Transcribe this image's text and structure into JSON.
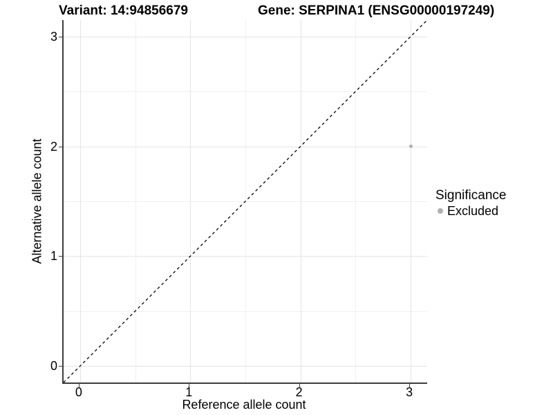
{
  "chart_data": {
    "type": "scatter",
    "titles": [
      "Variant: 14:94856679",
      "Gene: SERPINA1 (ENSG00000197249)"
    ],
    "xlabel": "Reference allele count",
    "ylabel": "Alternative allele count",
    "x_ticks": [
      0,
      1,
      2,
      3
    ],
    "y_ticks": [
      0,
      1,
      2,
      3
    ],
    "x_minor_ticks": [
      0.5,
      1.5,
      2.5
    ],
    "y_minor_ticks": [
      0.5,
      1.5,
      2.5
    ],
    "xlim": [
      -0.15,
      3.15
    ],
    "ylim": [
      -0.15,
      3.15
    ],
    "grid": "major and minor gridlines, light gray, on white panel",
    "points": [
      {
        "x": 3,
        "y": 2,
        "series": "Excluded"
      }
    ],
    "identity_line": {
      "equation": "y = x",
      "style": "dashed",
      "from": [
        -0.15,
        -0.15
      ],
      "to": [
        3.15,
        3.15
      ]
    },
    "legend": {
      "title": "Significance",
      "position": "right",
      "items": [
        {
          "label": "Excluded",
          "marker": "circle",
          "color": "#b0b0b0"
        }
      ]
    }
  },
  "colors": {
    "point": "#b0b0b0",
    "legend_marker": "#b0b0b0",
    "grid_major": "#e3e3e3",
    "grid_minor": "#f0f0f0",
    "axis_line": "#3c3c3c",
    "reference_line": "#000000",
    "text": "#000000",
    "background": "#ffffff"
  }
}
